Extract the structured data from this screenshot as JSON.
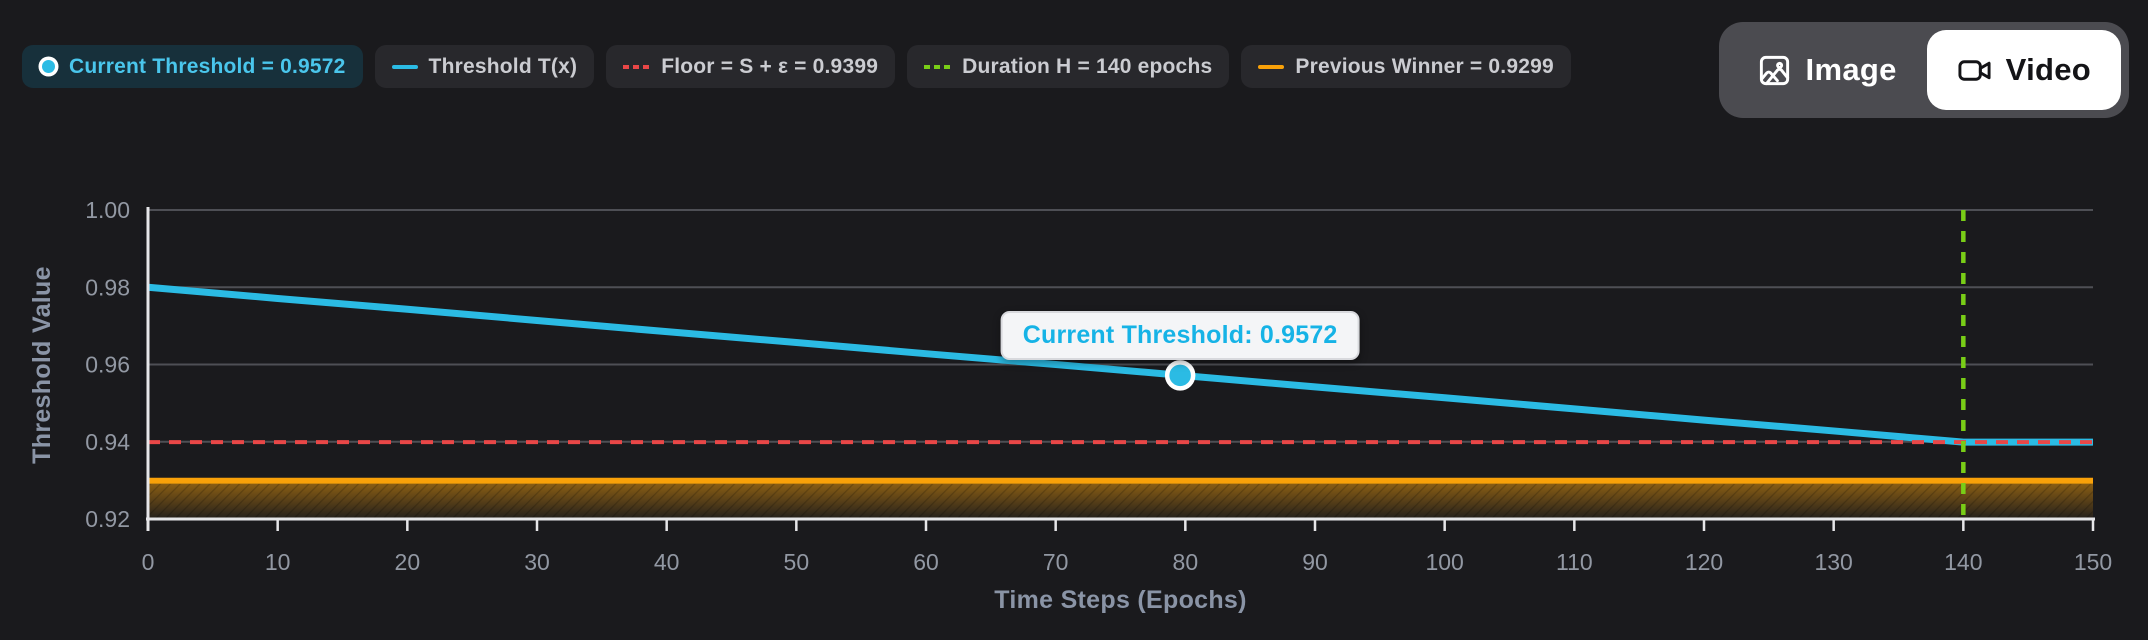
{
  "legend": {
    "items": [
      {
        "label": "Current Threshold = 0.9572",
        "marker": "dot",
        "color": "#2bbbe4",
        "highlighted": true
      },
      {
        "label": "Threshold T(x)",
        "marker": "line",
        "color": "#2bbbe4",
        "highlighted": false
      },
      {
        "label": "Floor = S + ε = 0.9399",
        "marker": "dash",
        "color": "#e94747",
        "highlighted": false
      },
      {
        "label": "Duration H = 140 epochs",
        "marker": "dash",
        "color": "#79cd17",
        "highlighted": false
      },
      {
        "label": "Previous Winner = 0.9299",
        "marker": "line",
        "color": "#f9a109",
        "highlighted": false
      }
    ]
  },
  "toggle": {
    "options": [
      {
        "label": "Image",
        "icon": "image-icon",
        "active": false
      },
      {
        "label": "Video",
        "icon": "video-icon",
        "active": true
      }
    ]
  },
  "tooltip": {
    "text": "Current Threshold: 0.9572"
  },
  "chart_data": {
    "type": "line",
    "title": "",
    "xlabel": "Time Steps (Epochs)",
    "ylabel": "Threshold Value",
    "xlim": [
      0,
      150
    ],
    "ylim": [
      0.92,
      1.0
    ],
    "x_ticks": [
      0,
      10,
      20,
      30,
      40,
      50,
      60,
      70,
      80,
      90,
      100,
      110,
      120,
      130,
      140,
      150
    ],
    "y_ticks": [
      0.92,
      0.94,
      0.96,
      0.98,
      1.0
    ],
    "grid": "horizontal",
    "legend_position": "top",
    "series": [
      {
        "name": "Threshold T(x)",
        "type": "line",
        "color": "#2bbbe4",
        "points": [
          [
            0,
            0.98
          ],
          [
            10,
            0.9771
          ],
          [
            20,
            0.9743
          ],
          [
            30,
            0.9714
          ],
          [
            40,
            0.9685
          ],
          [
            50,
            0.9657
          ],
          [
            60,
            0.9628
          ],
          [
            70,
            0.96
          ],
          [
            80,
            0.9571
          ],
          [
            90,
            0.9542
          ],
          [
            100,
            0.9514
          ],
          [
            110,
            0.9485
          ],
          [
            120,
            0.9456
          ],
          [
            130,
            0.9428
          ],
          [
            140,
            0.9399
          ],
          [
            150,
            0.9399
          ]
        ]
      },
      {
        "name": "Floor = S + ε",
        "type": "hline",
        "value": 0.9399,
        "color": "#e94747",
        "style": "dashed"
      },
      {
        "name": "Duration H",
        "type": "vline",
        "value": 140,
        "color": "#79cd17",
        "style": "dashed"
      },
      {
        "name": "Previous Winner",
        "type": "hline",
        "value": 0.9299,
        "color": "#f9a109",
        "style": "solid",
        "fill_below": true
      }
    ],
    "marker": {
      "label": "Current Threshold",
      "x": 79.6,
      "value": 0.9572,
      "color": "#2bbbe4"
    }
  },
  "colors": {
    "accent_cyan": "#2bbbe4",
    "floor_red": "#e94747",
    "duration_green": "#79cd17",
    "winner_orange": "#f9a109",
    "axis": "#e6e6e9",
    "grid": "#4e4f55",
    "tick_text": "#9298a3",
    "axis_title": "#8a94a6"
  }
}
